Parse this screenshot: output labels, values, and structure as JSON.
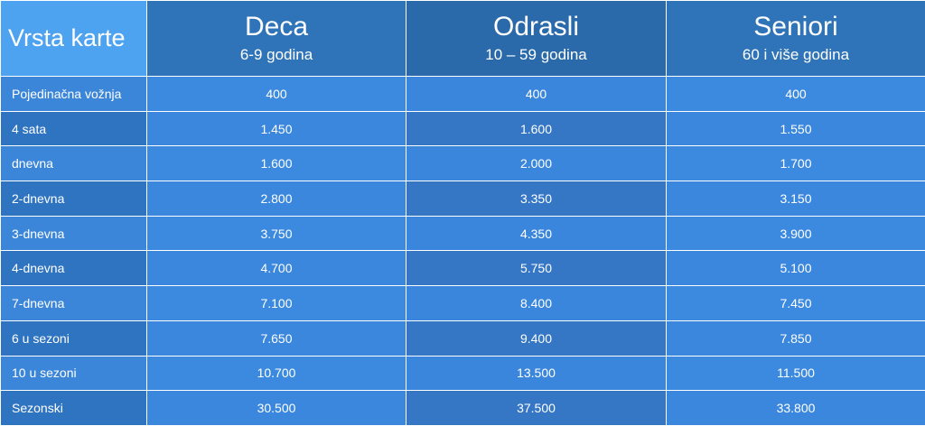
{
  "table": {
    "header": {
      "corner_label": "Vrsta karte",
      "groups": [
        {
          "name": "Deca",
          "age": "6-9 godina"
        },
        {
          "name": "Odrasli",
          "age": "10 – 59 godina"
        },
        {
          "name": "Seniori",
          "age": "60 i više godina"
        }
      ]
    },
    "rows": [
      {
        "label": "Pojedinačna vožnja",
        "values": [
          "400",
          "400",
          "400"
        ]
      },
      {
        "label": "4 sata",
        "values": [
          "1.450",
          "1.600",
          "1.550"
        ]
      },
      {
        "label": "dnevna",
        "values": [
          "1.600",
          "2.000",
          "1.700"
        ]
      },
      {
        "label": "2-dnevna",
        "values": [
          "2.800",
          "3.350",
          "3.150"
        ]
      },
      {
        "label": "3-dnevna",
        "values": [
          "3.750",
          "4.350",
          "3.900"
        ]
      },
      {
        "label": "4-dnevna",
        "values": [
          "4.700",
          "5.750",
          "5.100"
        ]
      },
      {
        "label": "7-dnevna",
        "values": [
          "7.100",
          "8.400",
          "7.450"
        ]
      },
      {
        "label": "6 u sezoni",
        "values": [
          "7.650",
          "9.400",
          "7.850"
        ]
      },
      {
        "label": "10 u sezoni",
        "values": [
          "10.700",
          "13.500",
          "11.500"
        ]
      },
      {
        "label": "Sezonski",
        "values": [
          "30.500",
          "37.500",
          "33.800"
        ]
      }
    ]
  },
  "colors": {
    "corner": "#4da3f0",
    "header": "#2f74b8",
    "row_light": "#3c8ae0",
    "row_dark": "#2f74c0",
    "text": "#ffffff"
  }
}
